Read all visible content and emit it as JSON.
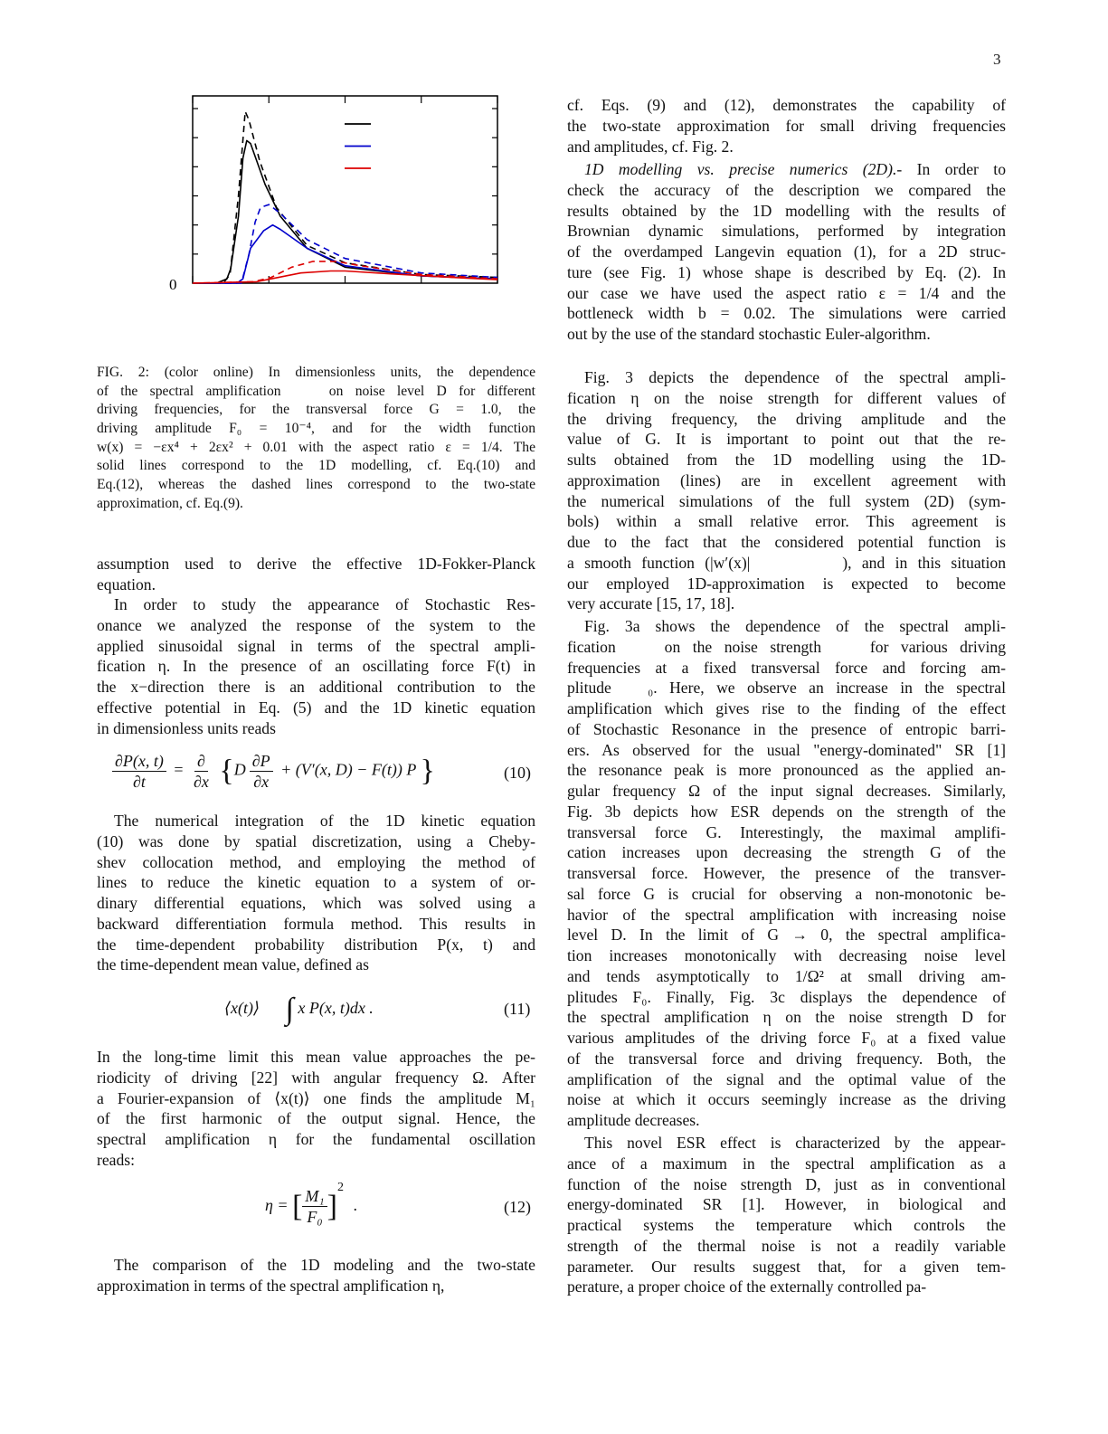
{
  "page_number": "3",
  "figure": {
    "caption_lines": [
      "FIG. 2: (color online) In dimensionless units, the dependence",
      "of the spectral amplification    on noise level D for different",
      "driving frequencies, for the transversal force G = 1.0, the",
      "driving amplitude F₀ = 10⁻⁴, and for the width function",
      "w(x) = −εx⁴ + 2εx² + 0.01 with the aspect ratio ε = 1/4. The",
      "solid lines correspond to the 1D modelling, cf. Eq.(10) and",
      "Eq.(12), whereas the dashed lines correspond to the two-state",
      "approximation, cf. Eq.(9)."
    ]
  },
  "chart_data": {
    "type": "line",
    "title": "",
    "xlabel": "",
    "ylabel": "",
    "xlim": [
      0,
      4
    ],
    "ylim": [
      0,
      6.2
    ],
    "y_tick_labels": [
      "0"
    ],
    "grid": false,
    "legend": {
      "placement": "top-right",
      "entries": [
        "black-solid",
        "blue-solid",
        "red-solid"
      ]
    },
    "series": [
      {
        "color": "#000000",
        "style": "solid",
        "x": [
          0,
          0.31,
          0.45,
          0.5,
          0.6,
          0.66,
          0.71,
          0.76,
          0.95,
          1.15,
          1.5,
          2.0,
          3.0,
          4.0
        ],
        "y": [
          0,
          0,
          0.15,
          0.5,
          2.3,
          4.3,
          4.9,
          4.8,
          3.4,
          2.3,
          1.2,
          0.55,
          0.25,
          0.15
        ]
      },
      {
        "color": "#000000",
        "style": "dashed",
        "x": [
          0,
          0.4,
          0.49,
          0.6,
          0.69,
          0.74,
          0.88,
          1.1,
          1.5,
          2.0,
          3.0,
          4.0
        ],
        "y": [
          0,
          0,
          0.3,
          3.0,
          5.9,
          5.6,
          4.2,
          2.6,
          1.3,
          0.7,
          0.3,
          0.2
        ]
      },
      {
        "color": "#0000cc",
        "style": "solid",
        "x": [
          0,
          0.58,
          0.66,
          0.76,
          0.93,
          1.05,
          1.15,
          1.5,
          2.0,
          3.0,
          4.0
        ],
        "y": [
          0,
          0,
          0.15,
          1.2,
          1.8,
          2.0,
          1.85,
          1.2,
          0.6,
          0.25,
          0.15
        ]
      },
      {
        "color": "#0000cc",
        "style": "dashed",
        "x": [
          0,
          0.64,
          0.74,
          0.82,
          0.89,
          1.0,
          1.15,
          1.5,
          2.0,
          3.0,
          4.0
        ],
        "y": [
          0,
          0,
          1.0,
          2.1,
          2.6,
          2.7,
          2.4,
          1.5,
          0.85,
          0.35,
          0.2
        ]
      },
      {
        "color": "#dd0000",
        "style": "solid",
        "x": [
          0,
          0.84,
          1.03,
          1.42,
          1.81,
          2.0,
          2.6,
          3.4,
          4.0
        ],
        "y": [
          0,
          0.05,
          0.15,
          0.35,
          0.42,
          0.42,
          0.32,
          0.2,
          0.12
        ]
      },
      {
        "color": "#dd0000",
        "style": "dashed",
        "x": [
          0,
          0.8,
          1.03,
          1.3,
          1.58,
          1.89,
          2.2,
          3.0,
          4.0
        ],
        "y": [
          0,
          0.05,
          0.2,
          0.55,
          0.75,
          0.75,
          0.6,
          0.3,
          0.15
        ]
      }
    ]
  },
  "left": {
    "p_a": [
      "assumption used to derive the effective 1D-Fokker-Planck",
      "equation."
    ],
    "p_b": [
      "In order to study the appearance of Stochastic Res-",
      "onance we analyzed the response of the system to the",
      "applied sinusoidal signal in terms of the spectral ampli-",
      "fication η. In the presence of an oscillating force F(t) in",
      "the x−direction there is an additional contribution to the",
      "effective potential in Eq. (5) and the 1D kinetic equation",
      "in dimensionless units reads"
    ],
    "eq10": {
      "lhs_num": "∂P(x, t)",
      "lhs_den": "∂t",
      "eq": "=",
      "op_num": "∂",
      "op_den": "∂x",
      "open": "{",
      "d": "D",
      "dp_num": "∂P",
      "dp_den": "∂x",
      "rest": "+ (V′(x, D) − F(t)) P",
      "close": "}",
      "number": "(10)"
    },
    "p_c": [
      "The numerical integration of the 1D kinetic equation",
      "(10) was done by spatial discretization, using a Cheby-",
      "shev collocation method, and employing the method of",
      "lines to reduce the kinetic equation to a system of or-",
      "dinary differential equations, which was solved using a",
      "backward differentiation formula method. This results in",
      "the time-dependent probability distribution P(x, t) and",
      "the time-dependent mean value, defined as"
    ],
    "eq11": {
      "lhs": "⟨x(t)⟩",
      "integral": "∫",
      "rhs": "x P(x, t)dx .",
      "number": "(11)"
    },
    "p_d": [
      "In the long-time limit this mean value approaches the pe-",
      "riodicity of driving [22] with angular frequency Ω. After",
      "a Fourier-expansion of ⟨x(t)⟩ one finds the amplitude M₁",
      "of the first harmonic of the output signal. Hence, the",
      "spectral amplification η for the fundamental oscillation",
      "reads:"
    ],
    "eq12": {
      "lhs": "η =",
      "open": "[",
      "num": "M₁",
      "den": "F₀",
      "close": "]",
      "power": "2",
      "dot": ".",
      "number": "(12)"
    },
    "p_e": [
      "The comparison of the 1D modeling and the two-state",
      "approximation in terms of the spectral amplification η,"
    ]
  },
  "right": {
    "p1": [
      "cf. Eqs. (9) and (12), demonstrates the capability of",
      "the two-state approximation for small driving frequencies",
      "and amplitudes, cf. Fig. 2."
    ],
    "p2_heading": "1D modelling vs. precise numerics (2D).-",
    "p2": [
      " In order to",
      "check the accuracy of the description we compared the",
      "results obtained by the 1D modelling with the results of",
      "Brownian dynamic simulations, performed by integration",
      "of the overdamped Langevin equation (1), for a 2D struc-",
      "ture (see Fig. 1) whose shape is described by Eq. (2). In",
      "our case we have used the aspect ratio ε = 1/4 and the",
      "bottleneck width b = 0.02. The simulations were carried",
      "out by the use of the standard stochastic Euler-algorithm."
    ],
    "p3": [
      "Fig. 3 depicts the dependence of the spectral ampli-",
      "fication η on the noise strength for different values of",
      "the driving frequency, the driving amplitude and the",
      "value of G. It is important to point out that the re-",
      "sults obtained from the 1D modelling using the 1D-",
      "approximation (lines) are in excellent agreement with",
      "the numerical simulations of the full system (2D) (sym-",
      "bols) within a small relative error. This agreement is",
      "due to the fact that the considered potential function is",
      "a smooth function (|w′(x)|         ), and in this situation",
      "our employed 1D-approximation is expected to become",
      "very accurate [15, 17, 18]."
    ],
    "p4": [
      "Fig. 3a shows the dependence of the spectral ampli-",
      "fication    on the noise strength    for various driving",
      "frequencies at a fixed transversal force and forcing am-",
      "plitude   ₀. Here, we observe an increase in the spectral",
      "amplification which gives rise to the finding of the effect",
      "of Stochastic Resonance in the presence of entropic barri-",
      "ers. As observed for the usual \"energy-dominated\" SR [1]",
      "the resonance peak is more pronounced as the applied an-",
      "gular frequency Ω of the input signal decreases. Similarly,",
      "Fig. 3b depicts how ESR depends on the strength of the",
      "transversal force G. Interestingly, the maximal amplifi-",
      "cation increases upon decreasing the strength G of the",
      "transversal force. However, the presence of the transver-",
      "sal force G is crucial for observing a non-monotonic be-",
      "havior of the spectral amplification with increasing noise",
      "level D. In the limit of G → 0, the spectral amplifica-",
      "tion increases monotonically with decreasing noise level",
      "and tends asymptotically to 1/Ω² at small driving am-",
      "plitudes F₀. Finally, Fig. 3c displays the dependence of",
      "the spectral amplification η on the noise strength D for",
      "various amplitudes of the driving force F₀ at a fixed value",
      "of the transversal force and driving frequency. Both, the",
      "amplification of the signal and the optimal value of the",
      "noise at which it occurs seemingly increase as the driving",
      "amplitude decreases."
    ],
    "p5": [
      "This novel ESR effect is characterized by the appear-",
      "ance of a maximum in the spectral amplification as a",
      "function of the noise strength D, just as in conventional",
      "energy-dominated SR [1]. However, in biological and",
      "practical systems the temperature which controls the",
      "strength of the thermal noise is not a readily variable",
      "parameter. Our results suggest that, for a given tem-",
      "perature, a proper choice of the externally controlled pa-"
    ]
  }
}
